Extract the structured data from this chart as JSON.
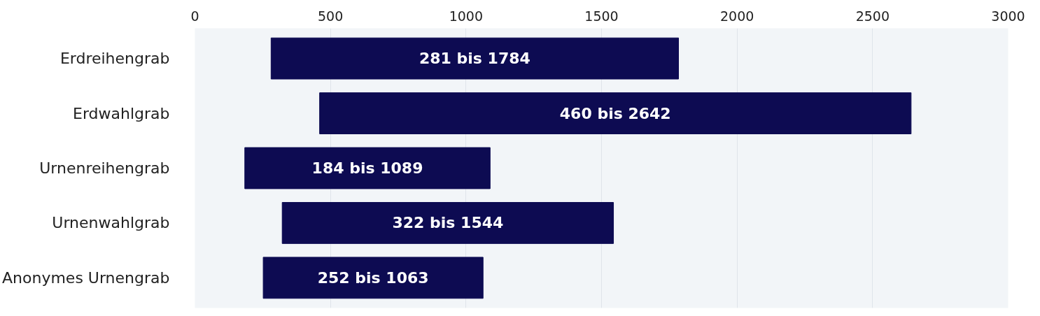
{
  "chart_data": {
    "type": "bar",
    "orientation": "horizontal",
    "categories": [
      "Erdreihengrab",
      "Erdwahlgrab",
      "Urnenreihengrab",
      "Urnenwahlgrab",
      "Anonymes Urnengrab"
    ],
    "base": [
      281,
      460,
      184,
      322,
      252
    ],
    "values": [
      1503,
      2182,
      905,
      1222,
      811
    ],
    "annotations": [
      {
        "text": "281 bis 1784",
        "y": "Erdreihengrab"
      },
      {
        "text": "460 bis 2642",
        "y": "Erdwahlgrab"
      },
      {
        "text": "184 bis 1089",
        "y": "Urnenreihengrab"
      },
      {
        "text": "322 bis 1544",
        "y": "Urnenwahlgrab"
      },
      {
        "text": "252 bis 1063",
        "y": "Anonymes Urnengrab"
      }
    ],
    "color": "#0d0b52",
    "xlim": [
      0,
      3000
    ],
    "xticks": [
      0,
      500,
      1000,
      1500,
      2000,
      2500,
      3000
    ],
    "grid": "x"
  }
}
